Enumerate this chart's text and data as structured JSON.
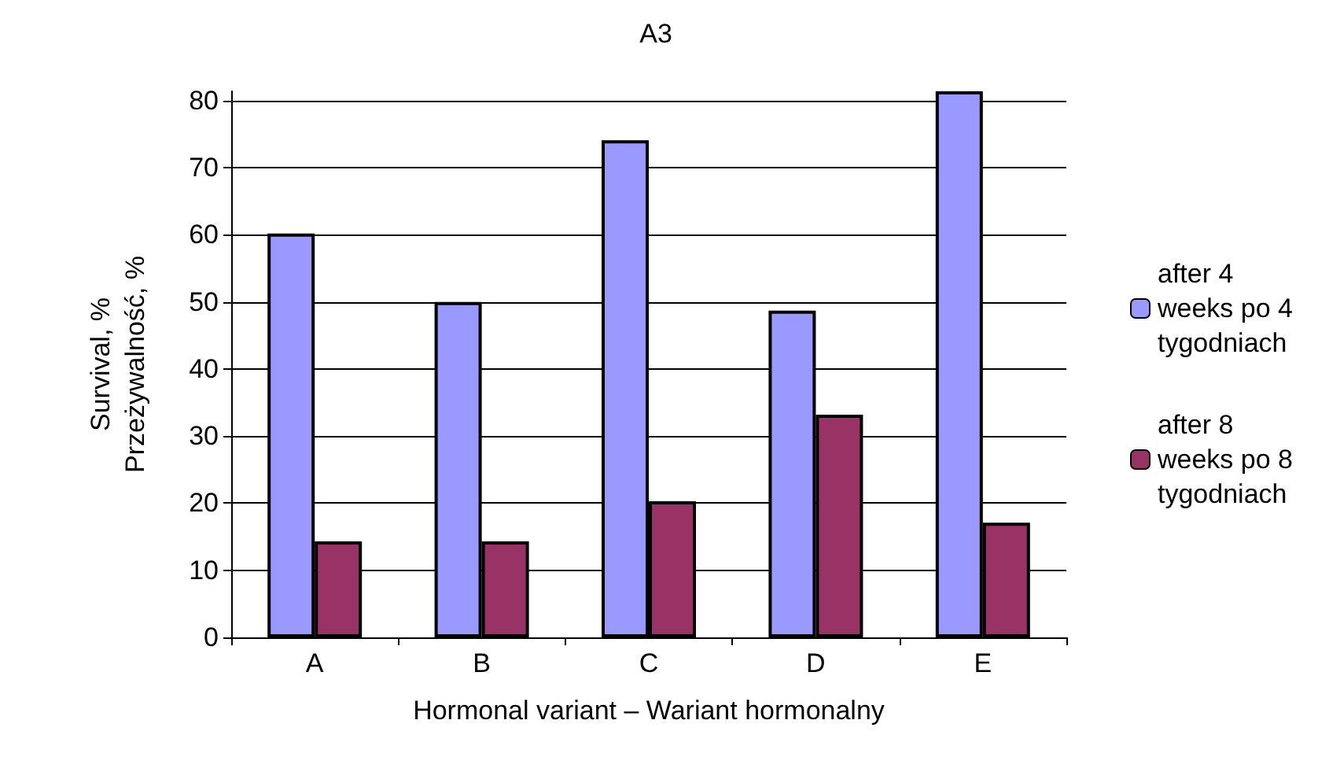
{
  "chart_data": {
    "type": "bar",
    "title": "A3",
    "xlabel": "Hormonal variant – Wariant hormonalny",
    "ylabel": "Survival, %\nPrzeżywalność, %",
    "categories": [
      "A",
      "B",
      "C",
      "D",
      "E"
    ],
    "series": [
      {
        "name": "after 4 weeks po 4 tygodniach",
        "color": "#9999ff",
        "values": [
          60.2,
          50,
          74.1,
          48.7,
          81.4
        ]
      },
      {
        "name": "after 8 weeks po 8 tygodniach",
        "color": "#993366",
        "values": [
          14.3,
          14.3,
          20.3,
          33.2,
          17.1
        ]
      }
    ],
    "ylim": [
      0,
      81.4
    ],
    "yticks": [
      0,
      10,
      20,
      30,
      40,
      50,
      60,
      70,
      80
    ],
    "grid": "y",
    "legend": "right"
  }
}
